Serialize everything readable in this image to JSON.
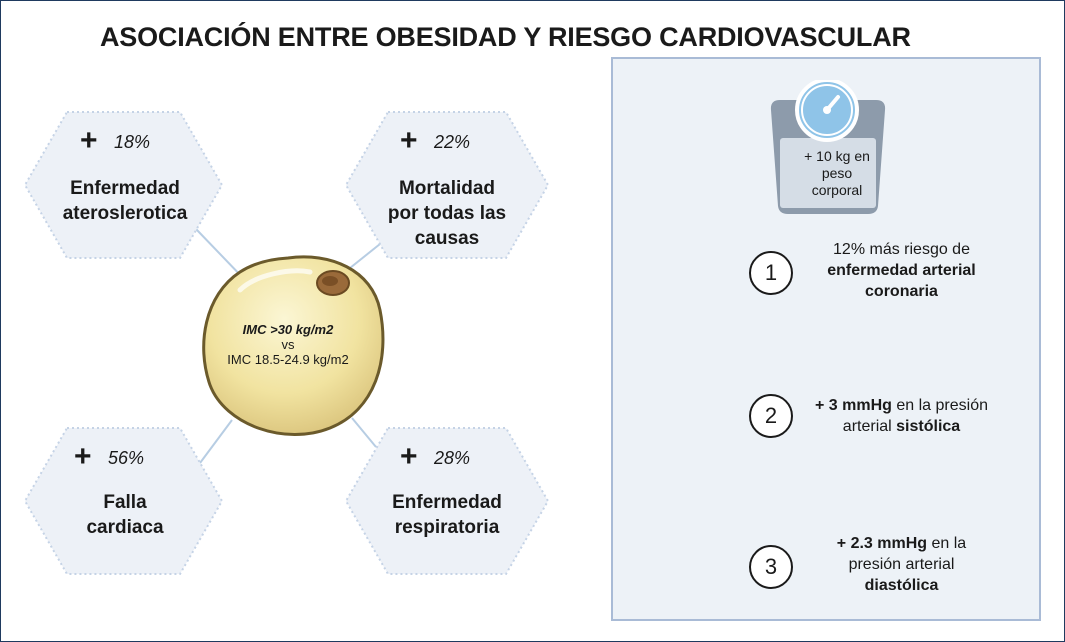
{
  "title": "ASOCIACIÓN ENTRE OBESIDAD Y RIESGO CARDIOVASCULAR",
  "center_cell": {
    "line1": "IMC >30 kg/m2",
    "line2": "vs",
    "line3": "IMC 18.5-24.9 kg/m2"
  },
  "outcomes": [
    {
      "sign": "+",
      "percent": "18%",
      "label": "Enfermedad\nateroslerotica"
    },
    {
      "sign": "+",
      "percent": "22%",
      "label": "Mortalidad\npor todas las\ncausas"
    },
    {
      "sign": "+",
      "percent": "56%",
      "label": "Falla\ncardiaca"
    },
    {
      "sign": "+",
      "percent": "28%",
      "label": "Enfermedad\nrespiratoria"
    }
  ],
  "scale": {
    "label": "+ 10 kg en\npeso\ncorporal"
  },
  "effects": [
    {
      "number": "1",
      "pre": "12% más riesgo de ",
      "bold": "enfermedad arterial coronaria",
      "post": ""
    },
    {
      "number": "2",
      "pre": "",
      "bold": "+ 3 mmHg",
      "post": " en la presión arterial ",
      "bold2": "sistólica"
    },
    {
      "number": "3",
      "pre": "",
      "bold": "+ 2.3 mmHg",
      "post": " en la presión arterial ",
      "bold2": "diastólica"
    }
  ],
  "colors": {
    "hex_fill": "#edf1f7",
    "hex_border": "#c5d3e6",
    "connector": "#b7cde3",
    "cell_fill": "#f3e9a6",
    "cell_border": "#6b5a2b",
    "nucleus": "#9a6a3a",
    "panel_fill": "#edf2f7",
    "panel_border": "#a9bbd6",
    "scale_body": "#8d9bab",
    "dial": "#8fc4e8"
  }
}
